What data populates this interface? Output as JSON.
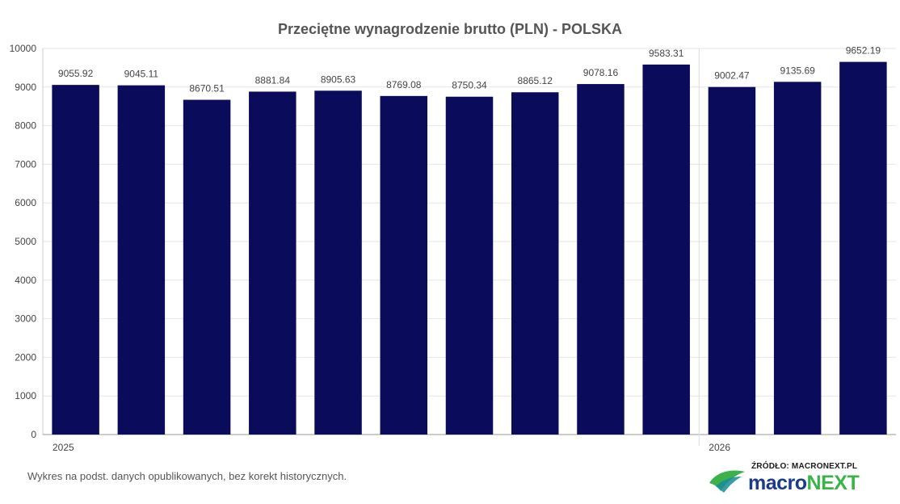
{
  "chart_data": {
    "type": "bar",
    "title": "Przeciętne wynagrodzenie brutto (PLN) - POLSKA",
    "xlabel": "",
    "ylabel": "",
    "ylim": [
      0,
      10000
    ],
    "yticks": [
      0,
      1000,
      2000,
      3000,
      4000,
      5000,
      6000,
      7000,
      8000,
      9000,
      10000
    ],
    "values": [
      9055.92,
      9045.11,
      8670.51,
      8881.84,
      8905.63,
      8769.08,
      8750.34,
      8865.12,
      9078.16,
      9583.31,
      9002.47,
      9135.69,
      9652.19
    ],
    "data_labels": [
      "9055.92",
      "9045.11",
      "8670.51",
      "8881.84",
      "8905.63",
      "8769.08",
      "8750.34",
      "8865.12",
      "9078.16",
      "9583.31",
      "9002.47",
      "9135.69",
      "9652.19"
    ],
    "year_labels": [
      {
        "label": "2025",
        "start_index": 0
      },
      {
        "label": "2026",
        "start_index": 10
      }
    ],
    "grid": true,
    "legend": "none",
    "bar_color": "#0b0b5c"
  },
  "footnote": "Wykres na podst. danych opublikowanych, bez korekt historycznych.",
  "logo": {
    "source": "ŹRÓDŁO: MACRONEXT.PL",
    "wordmark_part1": "macro",
    "wordmark_part2": "NEXT"
  }
}
